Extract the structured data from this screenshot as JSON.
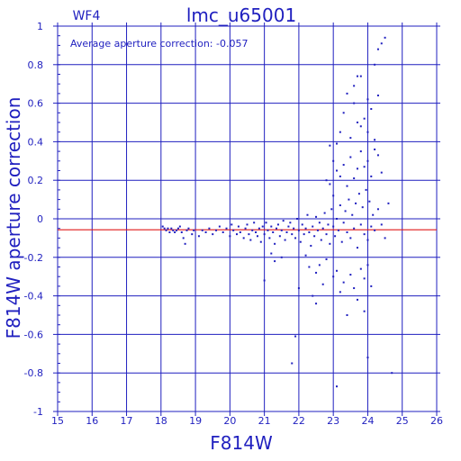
{
  "chart_data": {
    "type": "scatter",
    "title": "lmc_u65001",
    "chip_label": "WF4",
    "annotation": "Average aperture correction: -0.057",
    "xlabel": "F814W",
    "ylabel": "F814W aperture correction",
    "xlim": [
      15,
      26
    ],
    "ylim": [
      -1,
      1
    ],
    "x_ticks": [
      15,
      16,
      17,
      18,
      19,
      20,
      21,
      22,
      23,
      24,
      25,
      26
    ],
    "y_ticks": [
      -1,
      -0.8,
      -0.6,
      -0.4,
      -0.2,
      0,
      0.2,
      0.4,
      0.6,
      0.8,
      1
    ],
    "x_tick_labels": [
      "15",
      "16",
      "17",
      "18",
      "19",
      "20",
      "21",
      "22",
      "23",
      "24",
      "25",
      "26"
    ],
    "y_tick_labels": [
      "-1",
      "-0.8",
      "-0.6",
      "-0.4",
      "-0.2",
      "0",
      "0.2",
      "0.4",
      "0.6",
      "0.8",
      "1"
    ],
    "grid": true,
    "reference_line": -0.057,
    "colors": {
      "axes": "#1f1fbf",
      "points": "#1f1fbf",
      "reference_line": "#e01818",
      "background": "#ffffff"
    },
    "points": [
      [
        18.05,
        -0.04
      ],
      [
        18.1,
        -0.05
      ],
      [
        18.15,
        -0.06
      ],
      [
        18.2,
        -0.05
      ],
      [
        18.25,
        -0.07
      ],
      [
        18.3,
        -0.05
      ],
      [
        18.35,
        -0.06
      ],
      [
        18.4,
        -0.07
      ],
      [
        18.45,
        -0.06
      ],
      [
        18.5,
        -0.05
      ],
      [
        18.55,
        -0.04
      ],
      [
        18.6,
        -0.07
      ],
      [
        18.65,
        -0.1
      ],
      [
        18.7,
        -0.13
      ],
      [
        18.75,
        -0.06
      ],
      [
        18.8,
        -0.05
      ],
      [
        18.9,
        -0.08
      ],
      [
        18.95,
        -0.06
      ],
      [
        19.1,
        -0.09
      ],
      [
        19.2,
        -0.06
      ],
      [
        19.3,
        -0.07
      ],
      [
        19.4,
        -0.05
      ],
      [
        19.5,
        -0.08
      ],
      [
        19.6,
        -0.06
      ],
      [
        19.7,
        -0.04
      ],
      [
        19.8,
        -0.07
      ],
      [
        19.9,
        -0.05
      ],
      [
        20.0,
        -0.09
      ],
      [
        20.05,
        -0.03
      ],
      [
        20.1,
        -0.06
      ],
      [
        20.2,
        -0.08
      ],
      [
        20.25,
        -0.04
      ],
      [
        20.3,
        -0.07
      ],
      [
        20.4,
        -0.1
      ],
      [
        20.45,
        -0.05
      ],
      [
        20.5,
        -0.03
      ],
      [
        20.55,
        -0.08
      ],
      [
        20.6,
        -0.11
      ],
      [
        20.65,
        -0.06
      ],
      [
        20.7,
        -0.02
      ],
      [
        20.75,
        -0.07
      ],
      [
        20.8,
        -0.09
      ],
      [
        20.85,
        -0.05
      ],
      [
        20.9,
        -0.12
      ],
      [
        20.95,
        -0.04
      ],
      [
        21.0,
        -0.08
      ],
      [
        21.05,
        -0.02
      ],
      [
        21.1,
        -0.06
      ],
      [
        21.15,
        -0.1
      ],
      [
        21.2,
        -0.04
      ],
      [
        21.25,
        -0.07
      ],
      [
        21.3,
        -0.13
      ],
      [
        21.35,
        -0.05
      ],
      [
        21.4,
        -0.03
      ],
      [
        21.45,
        -0.09
      ],
      [
        21.5,
        -0.06
      ],
      [
        21.55,
        -0.01
      ],
      [
        21.6,
        -0.11
      ],
      [
        21.65,
        -0.07
      ],
      [
        21.7,
        -0.04
      ],
      [
        21.75,
        -0.02
      ],
      [
        21.8,
        -0.08
      ],
      [
        21.85,
        -0.05
      ],
      [
        21.9,
        -0.1
      ],
      [
        21.95,
        0.0
      ],
      [
        22.0,
        -0.06
      ],
      [
        22.05,
        -0.12
      ],
      [
        22.1,
        -0.03
      ],
      [
        22.15,
        -0.08
      ],
      [
        22.2,
        -0.05
      ],
      [
        22.25,
        0.02
      ],
      [
        22.3,
        -0.07
      ],
      [
        22.35,
        -0.14
      ],
      [
        22.4,
        -0.04
      ],
      [
        22.45,
        -0.09
      ],
      [
        22.5,
        0.01
      ],
      [
        22.55,
        -0.06
      ],
      [
        22.6,
        -0.02
      ],
      [
        22.65,
        -0.11
      ],
      [
        22.7,
        -0.05
      ],
      [
        22.75,
        0.03
      ],
      [
        22.8,
        -0.08
      ],
      [
        22.85,
        -0.03
      ],
      [
        22.9,
        -0.13
      ],
      [
        22.95,
        0.05
      ],
      [
        23.0,
        -0.04
      ],
      [
        23.05,
        -0.09
      ],
      [
        23.1,
        0.0
      ],
      [
        23.15,
        -0.06
      ],
      [
        23.2,
        0.07
      ],
      [
        23.25,
        -0.12
      ],
      [
        23.3,
        -0.02
      ],
      [
        23.35,
        0.04
      ],
      [
        23.4,
        -0.07
      ],
      [
        23.45,
        0.1
      ],
      [
        23.5,
        -0.1
      ],
      [
        23.55,
        0.02
      ],
      [
        23.6,
        -0.05
      ],
      [
        23.65,
        0.08
      ],
      [
        23.7,
        -0.15
      ],
      [
        23.75,
        0.13
      ],
      [
        23.8,
        -0.03
      ],
      [
        23.85,
        0.06
      ],
      [
        23.9,
        -0.08
      ],
      [
        23.95,
        0.15
      ],
      [
        24.0,
        -0.11
      ],
      [
        24.05,
        0.09
      ],
      [
        24.1,
        -0.04
      ],
      [
        24.15,
        0.02
      ],
      [
        24.2,
        -0.06
      ],
      [
        24.3,
        0.05
      ],
      [
        24.4,
        -0.03
      ],
      [
        21.2,
        -0.18
      ],
      [
        21.3,
        -0.22
      ],
      [
        21.5,
        -0.2
      ],
      [
        22.2,
        -0.19
      ],
      [
        22.3,
        -0.25
      ],
      [
        22.5,
        -0.28
      ],
      [
        22.6,
        -0.24
      ],
      [
        22.8,
        -0.21
      ],
      [
        23.0,
        -0.3
      ],
      [
        23.1,
        -0.27
      ],
      [
        23.3,
        -0.33
      ],
      [
        23.5,
        -0.29
      ],
      [
        23.6,
        -0.36
      ],
      [
        23.8,
        -0.26
      ],
      [
        23.9,
        -0.31
      ],
      [
        24.0,
        -0.24
      ],
      [
        21.0,
        -0.32
      ],
      [
        22.0,
        -0.36
      ],
      [
        22.4,
        -0.4
      ],
      [
        22.7,
        -0.34
      ],
      [
        23.2,
        -0.38
      ],
      [
        23.7,
        -0.42
      ],
      [
        24.1,
        -0.35
      ],
      [
        23.4,
        -0.5
      ],
      [
        23.9,
        -0.48
      ],
      [
        22.5,
        -0.44
      ],
      [
        22.8,
        0.2
      ],
      [
        22.9,
        0.18
      ],
      [
        23.0,
        0.12
      ],
      [
        23.1,
        0.25
      ],
      [
        23.2,
        0.22
      ],
      [
        23.3,
        0.28
      ],
      [
        23.4,
        0.17
      ],
      [
        23.5,
        0.32
      ],
      [
        23.6,
        0.21
      ],
      [
        23.7,
        0.26
      ],
      [
        23.8,
        0.35
      ],
      [
        23.9,
        0.27
      ],
      [
        24.0,
        0.3
      ],
      [
        24.1,
        0.22
      ],
      [
        24.2,
        0.36
      ],
      [
        22.9,
        0.38
      ],
      [
        23.0,
        0.3
      ],
      [
        23.2,
        0.45
      ],
      [
        23.3,
        0.55
      ],
      [
        23.5,
        0.42
      ],
      [
        23.6,
        0.6
      ],
      [
        23.7,
        0.5
      ],
      [
        23.8,
        0.48
      ],
      [
        23.9,
        0.52
      ],
      [
        24.0,
        0.45
      ],
      [
        24.1,
        0.57
      ],
      [
        24.2,
        0.41
      ],
      [
        24.3,
        0.33
      ],
      [
        24.4,
        0.24
      ],
      [
        23.4,
        0.65
      ],
      [
        23.6,
        0.69
      ],
      [
        23.8,
        0.74
      ],
      [
        24.0,
        0.62
      ],
      [
        23.7,
        0.74
      ],
      [
        24.2,
        0.8
      ],
      [
        24.3,
        0.88
      ],
      [
        24.4,
        0.91
      ],
      [
        24.5,
        0.94
      ],
      [
        24.3,
        0.64
      ],
      [
        23.1,
        0.39
      ],
      [
        21.8,
        -0.75
      ],
      [
        21.9,
        -0.61
      ],
      [
        23.1,
        -0.87
      ],
      [
        24.0,
        -0.72
      ],
      [
        24.7,
        -0.8
      ],
      [
        24.6,
        0.08
      ],
      [
        24.5,
        -0.1
      ]
    ]
  }
}
